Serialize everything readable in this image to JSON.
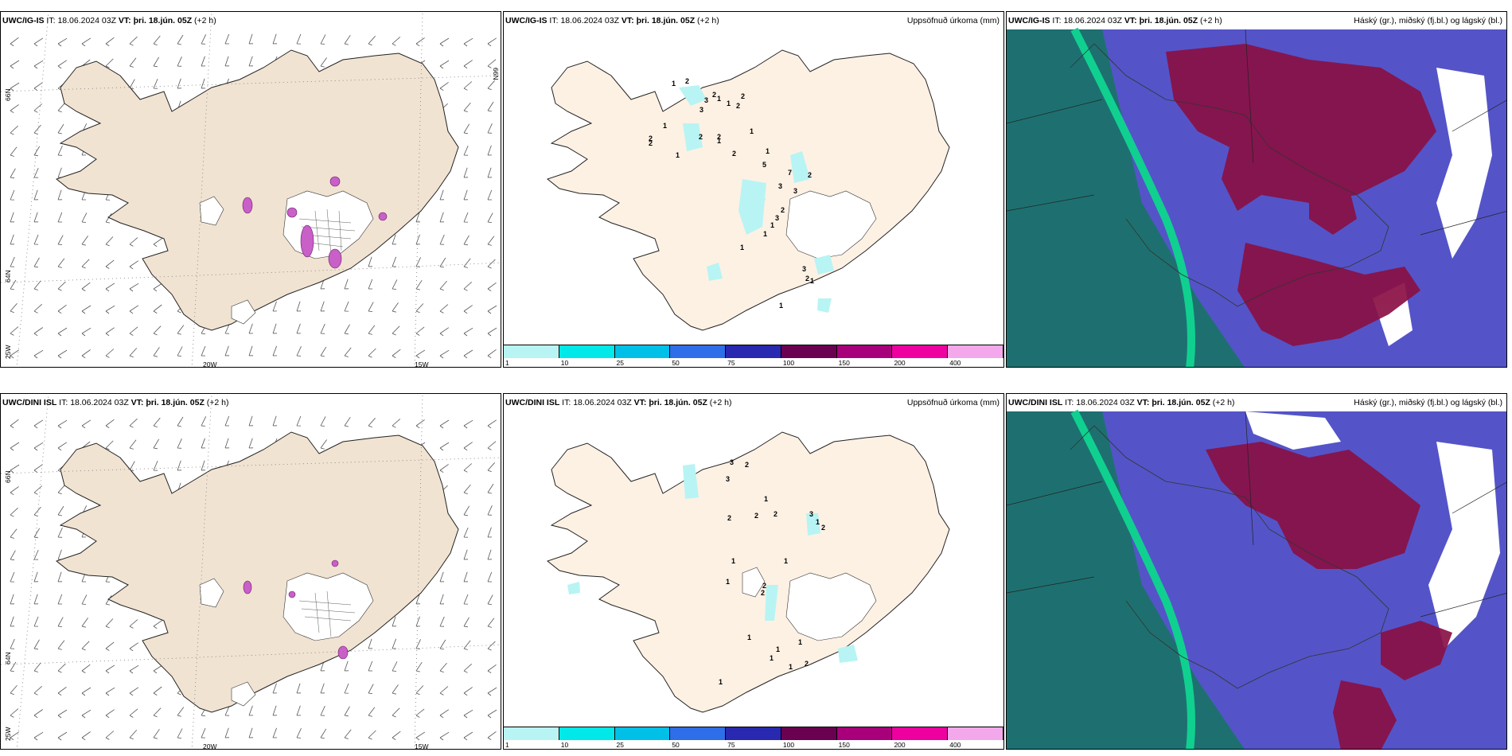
{
  "panels": [
    {
      "model": "UWC/IG-IS",
      "it_label": "IT:",
      "it": "18.06.2024 03Z",
      "vt_label": "VT:",
      "vt": "þri. 18.jún. 05Z",
      "lead": "(+2 h)",
      "title": ""
    },
    {
      "model": "UWC/IG-IS",
      "it_label": "IT:",
      "it": "18.06.2024 03Z",
      "vt_label": "VT:",
      "vt": "þri. 18.jún. 05Z",
      "lead": "(+2 h)",
      "title": "Uppsöfnuð úrkoma (mm)"
    },
    {
      "model": "UWC/IG-IS",
      "it_label": "IT:",
      "it": "18.06.2024 03Z",
      "vt_label": "VT:",
      "vt": "þri. 18.jún. 05Z",
      "lead": "(+2 h)",
      "title": "Háský (gr.), miðský (fj.bl.) og lágský (bl.)"
    },
    {
      "model": "UWC/DINI ISL",
      "it_label": "IT:",
      "it": "18.06.2024 03Z",
      "vt_label": "VT:",
      "vt": "þri. 18.jún. 05Z",
      "lead": "(+2 h)",
      "title": ""
    },
    {
      "model": "UWC/DINI ISL",
      "it_label": "IT:",
      "it": "18.06.2024 03Z",
      "vt_label": "VT:",
      "vt": "þri. 18.jún. 05Z",
      "lead": "(+2 h)",
      "title": "Uppsöfnuð úrkoma (mm)"
    },
    {
      "model": "UWC/DINI ISL",
      "it_label": "IT:",
      "it": "18.06.2024 03Z",
      "vt_label": "VT:",
      "vt": "þri. 18.jún. 05Z",
      "lead": "(+2 h)",
      "title": "Háský (gr.), miðský (fj.bl.) og lágský (bl.)"
    }
  ],
  "grid_labels": {
    "lat66": "66N",
    "lat64": "64N",
    "lon25": "25W",
    "lon20": "20W",
    "lon15": "15W"
  },
  "colorbar": {
    "ticks": [
      "1",
      "10",
      "25",
      "50",
      "75",
      "100",
      "150",
      "200",
      "400"
    ],
    "colors": [
      "#b8f4f4",
      "#00e8e8",
      "#00c0e8",
      "#2e6ee8",
      "#2828b0",
      "#6a0050",
      "#a8007a",
      "#ee00a0",
      "#f4a8ec"
    ]
  },
  "precip_top": [
    "1",
    "2",
    "2",
    "3",
    "1",
    "2",
    "3",
    "1",
    "2",
    "2",
    "2",
    "1",
    "2",
    "1",
    "2",
    "1",
    "1",
    "2",
    "5",
    "7",
    "2",
    "3",
    "1",
    "3",
    "2",
    "3",
    "1",
    "1",
    "1",
    "3",
    "2",
    "1",
    "1"
  ],
  "precip_bottom": [
    "3",
    "2",
    "3",
    "1",
    "2",
    "2",
    "2",
    "3",
    "1",
    "2",
    "1",
    "1",
    "2",
    "2",
    "1",
    "1",
    "1",
    "1",
    "2",
    "1",
    "1",
    "1"
  ],
  "colors": {
    "land": "#f1e3d2",
    "sea": "#ffffff",
    "precip_land": "#fdf1e4",
    "cloud_sea": "#1e7070",
    "high_cloud": "#5454c8",
    "mid_cloud": "#8a1044",
    "low_cloud": "#ffffff",
    "band": "#10d090"
  }
}
